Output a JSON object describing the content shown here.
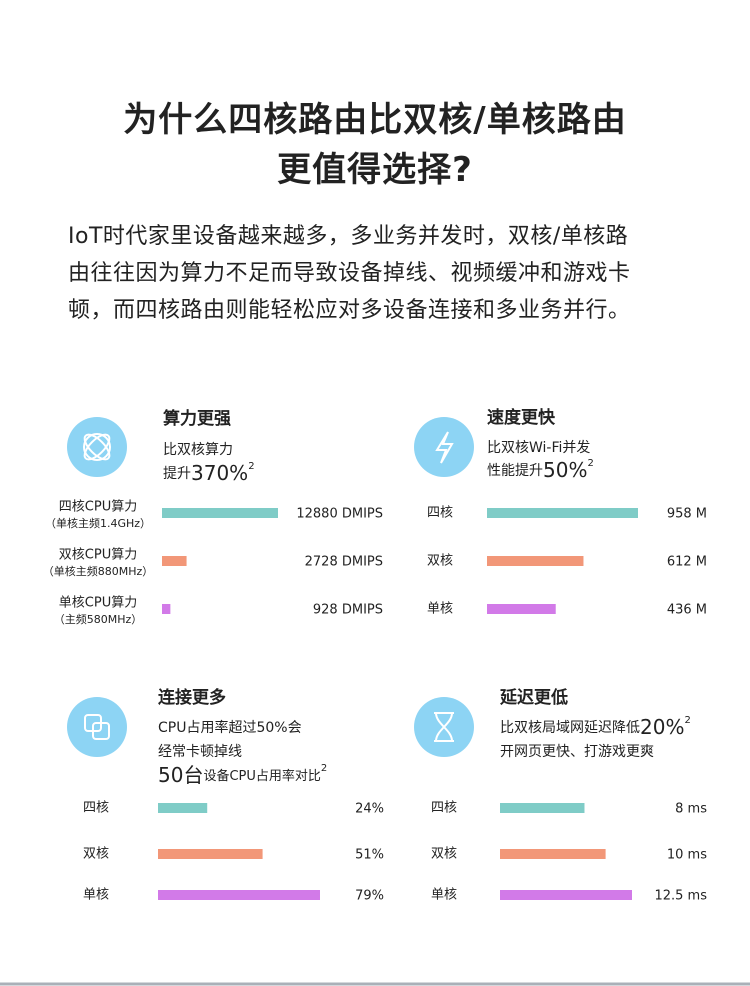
{
  "title": [
    "为什么四核路由比双核/单核路由",
    "更值得选择?"
  ],
  "intro": [
    "IoT时代家里设备越来越多，多业务并发时，双核/单核路",
    "由往往因为算力不足而导致设备掉线、视频缓冲和游戏卡",
    "顿，而四核路由则能轻松应对多设备连接和多业务并行。"
  ],
  "chart_data": [
    {
      "type": "bar",
      "title": "算力更强",
      "subtitle": [
        [
          "比双核算力"
        ],
        [
          "提升",
          "370%",
          "2"
        ]
      ],
      "categories": [
        "四核CPU算力",
        "双核CPU算力",
        "单核CPU算力"
      ],
      "category_notes": [
        "（单核主频1.4GHz）",
        "（单核主频880MHz）",
        "（主频580MHz）"
      ],
      "values": [
        12880,
        2728,
        928
      ],
      "value_labels": [
        "12880 DMIPS",
        "2728 DMIPS",
        "928 DMIPS"
      ],
      "colors": [
        "#7fccc7",
        "#f29778",
        "#d27ae8"
      ]
    },
    {
      "type": "bar",
      "title": "速度更快",
      "subtitle": [
        [
          "比双核Wi-Fi并发"
        ],
        [
          "性能提升",
          "50%",
          "2"
        ]
      ],
      "categories": [
        "四核",
        "双核",
        "单核"
      ],
      "values": [
        958,
        612,
        436
      ],
      "value_labels": [
        "958 M",
        "612 M",
        "436 M"
      ],
      "colors": [
        "#7fccc7",
        "#f29778",
        "#d27ae8"
      ]
    },
    {
      "type": "bar",
      "title": "连接更多",
      "subtitle": [
        [
          "CPU占用率超过50%会"
        ],
        [
          "经常卡顿掉线"
        ],
        [
          "50台",
          "设备CPU占用率对比",
          "2"
        ]
      ],
      "categories": [
        "四核",
        "双核",
        "单核"
      ],
      "values": [
        24,
        51,
        79
      ],
      "value_labels": [
        "24%",
        "51%",
        "79%"
      ],
      "colors": [
        "#7fccc7",
        "#f29778",
        "#d27ae8"
      ]
    },
    {
      "type": "bar",
      "title": "延迟更低",
      "subtitle": [
        [
          "比双核局域网延迟降低",
          "20%",
          "2"
        ],
        [
          "开网页更快、打游戏更爽"
        ]
      ],
      "categories": [
        "四核",
        "双核",
        "单核"
      ],
      "values": [
        8,
        10,
        12.5
      ],
      "value_labels": [
        "8 ms",
        "10 ms",
        "12.5 ms"
      ],
      "colors": [
        "#7fccc7",
        "#f29778",
        "#d27ae8"
      ]
    }
  ]
}
